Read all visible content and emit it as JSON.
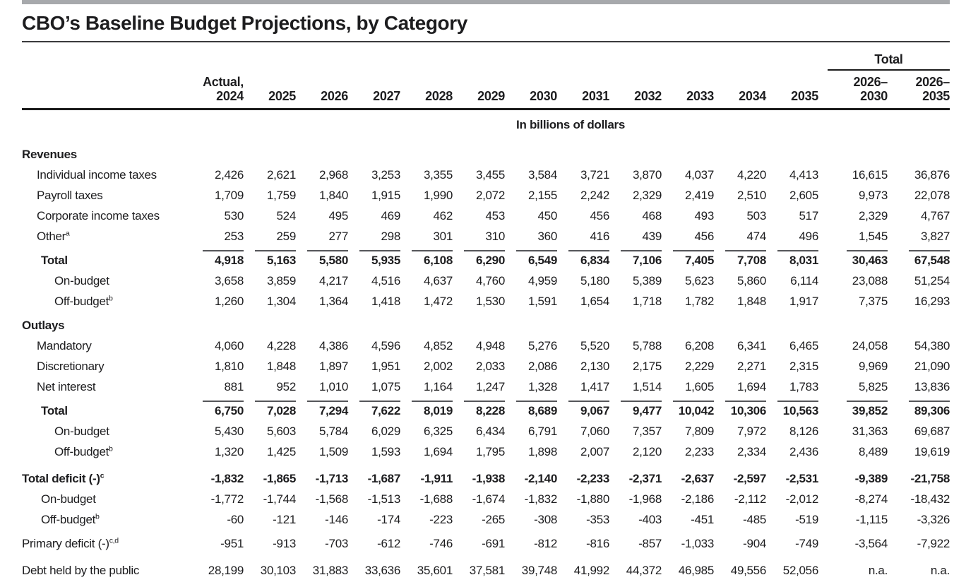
{
  "page": {
    "title": "CBO’s Baseline Budget Projections, by Category",
    "units_label": "In billions of dollars"
  },
  "table": {
    "header": {
      "first_col": {
        "line1": "Actual,",
        "line2": "2024"
      },
      "years": [
        "2025",
        "2026",
        "2027",
        "2028",
        "2029",
        "2030",
        "2031",
        "2032",
        "2033",
        "2034",
        "2035"
      ],
      "total_spanner": "Total",
      "total_cols": [
        {
          "line1": "2026–",
          "line2": "2030"
        },
        {
          "line1": "2026–",
          "line2": "2035"
        }
      ]
    },
    "rows": [
      {
        "style": "section",
        "label": "Revenues"
      },
      {
        "style": "item",
        "label": "Individual income taxes",
        "values": [
          "2,426",
          "2,621",
          "2,968",
          "3,253",
          "3,355",
          "3,455",
          "3,584",
          "3,721",
          "3,870",
          "4,037",
          "4,220",
          "4,413",
          "16,615",
          "36,876"
        ]
      },
      {
        "style": "item",
        "label": "Payroll taxes",
        "values": [
          "1,709",
          "1,759",
          "1,840",
          "1,915",
          "1,990",
          "2,072",
          "2,155",
          "2,242",
          "2,329",
          "2,419",
          "2,510",
          "2,605",
          "9,973",
          "22,078"
        ]
      },
      {
        "style": "item",
        "label": "Corporate income taxes",
        "values": [
          "530",
          "524",
          "495",
          "469",
          "462",
          "453",
          "450",
          "456",
          "468",
          "493",
          "503",
          "517",
          "2,329",
          "4,767"
        ]
      },
      {
        "style": "item",
        "label": "Other",
        "sup": "a",
        "values": [
          "253",
          "259",
          "277",
          "298",
          "301",
          "310",
          "360",
          "416",
          "439",
          "456",
          "474",
          "496",
          "1,545",
          "3,827"
        ]
      },
      {
        "style": "total",
        "label": "Total",
        "bold": true,
        "rule": true,
        "values": [
          "4,918",
          "5,163",
          "5,580",
          "5,935",
          "6,108",
          "6,290",
          "6,549",
          "6,834",
          "7,106",
          "7,405",
          "7,708",
          "8,031",
          "30,463",
          "67,548"
        ]
      },
      {
        "style": "sub",
        "label": "On-budget",
        "values": [
          "3,658",
          "3,859",
          "4,217",
          "4,516",
          "4,637",
          "4,760",
          "4,959",
          "5,180",
          "5,389",
          "5,623",
          "5,860",
          "6,114",
          "23,088",
          "51,254"
        ]
      },
      {
        "style": "sub",
        "label": "Off-budget",
        "sup": "b",
        "values": [
          "1,260",
          "1,304",
          "1,364",
          "1,418",
          "1,472",
          "1,530",
          "1,591",
          "1,654",
          "1,718",
          "1,782",
          "1,848",
          "1,917",
          "7,375",
          "16,293"
        ]
      },
      {
        "style": "section",
        "label": "Outlays",
        "gap": "sm"
      },
      {
        "style": "item",
        "label": "Mandatory",
        "values": [
          "4,060",
          "4,228",
          "4,386",
          "4,596",
          "4,852",
          "4,948",
          "5,276",
          "5,520",
          "5,788",
          "6,208",
          "6,341",
          "6,465",
          "24,058",
          "54,380"
        ]
      },
      {
        "style": "item",
        "label": "Discretionary",
        "values": [
          "1,810",
          "1,848",
          "1,897",
          "1,951",
          "2,002",
          "2,033",
          "2,086",
          "2,130",
          "2,175",
          "2,229",
          "2,271",
          "2,315",
          "9,969",
          "21,090"
        ]
      },
      {
        "style": "item",
        "label": "Net interest",
        "values": [
          "881",
          "952",
          "1,010",
          "1,075",
          "1,164",
          "1,247",
          "1,328",
          "1,417",
          "1,514",
          "1,605",
          "1,694",
          "1,783",
          "5,825",
          "13,836"
        ]
      },
      {
        "style": "total",
        "label": "Total",
        "bold": true,
        "rule": true,
        "values": [
          "6,750",
          "7,028",
          "7,294",
          "7,622",
          "8,019",
          "8,228",
          "8,689",
          "9,067",
          "9,477",
          "10,042",
          "10,306",
          "10,563",
          "39,852",
          "89,306"
        ]
      },
      {
        "style": "sub",
        "label": "On-budget",
        "values": [
          "5,430",
          "5,603",
          "5,784",
          "6,029",
          "6,325",
          "6,434",
          "6,791",
          "7,060",
          "7,357",
          "7,809",
          "7,972",
          "8,126",
          "31,363",
          "69,687"
        ]
      },
      {
        "style": "sub",
        "label": "Off-budget",
        "sup": "b",
        "values": [
          "1,320",
          "1,425",
          "1,509",
          "1,593",
          "1,694",
          "1,795",
          "1,898",
          "2,007",
          "2,120",
          "2,233",
          "2,334",
          "2,436",
          "8,489",
          "19,619"
        ]
      },
      {
        "style": "flat",
        "label": "Total deficit (-)",
        "sup": "c",
        "bold": true,
        "gap": "md",
        "values": [
          "-1,832",
          "-1,865",
          "-1,713",
          "-1,687",
          "-1,911",
          "-1,938",
          "-2,140",
          "-2,233",
          "-2,371",
          "-2,637",
          "-2,597",
          "-2,531",
          "-9,389",
          "-21,758"
        ]
      },
      {
        "style": "deficit-sub",
        "label": "On-budget",
        "values": [
          "-1,772",
          "-1,744",
          "-1,568",
          "-1,513",
          "-1,688",
          "-1,674",
          "-1,832",
          "-1,880",
          "-1,968",
          "-2,186",
          "-2,112",
          "-2,012",
          "-8,274",
          "-18,432"
        ]
      },
      {
        "style": "deficit-sub",
        "label": "Off-budget",
        "sup": "b",
        "values": [
          "-60",
          "-121",
          "-146",
          "-174",
          "-223",
          "-265",
          "-308",
          "-353",
          "-403",
          "-451",
          "-485",
          "-519",
          "-1,115",
          "-3,326"
        ]
      },
      {
        "style": "flat",
        "label": "Primary deficit (-)",
        "sup": "c,d",
        "gap": "sm",
        "values": [
          "-951",
          "-913",
          "-703",
          "-612",
          "-746",
          "-691",
          "-812",
          "-816",
          "-857",
          "-1,033",
          "-904",
          "-749",
          "-3,564",
          "-7,922"
        ]
      },
      {
        "style": "flat",
        "label": "Debt held by the public",
        "gap": "md",
        "values": [
          "28,199",
          "30,103",
          "31,883",
          "33,636",
          "35,601",
          "37,581",
          "39,748",
          "41,992",
          "44,372",
          "46,985",
          "49,556",
          "52,056",
          "n.a.",
          "n.a."
        ]
      }
    ]
  }
}
